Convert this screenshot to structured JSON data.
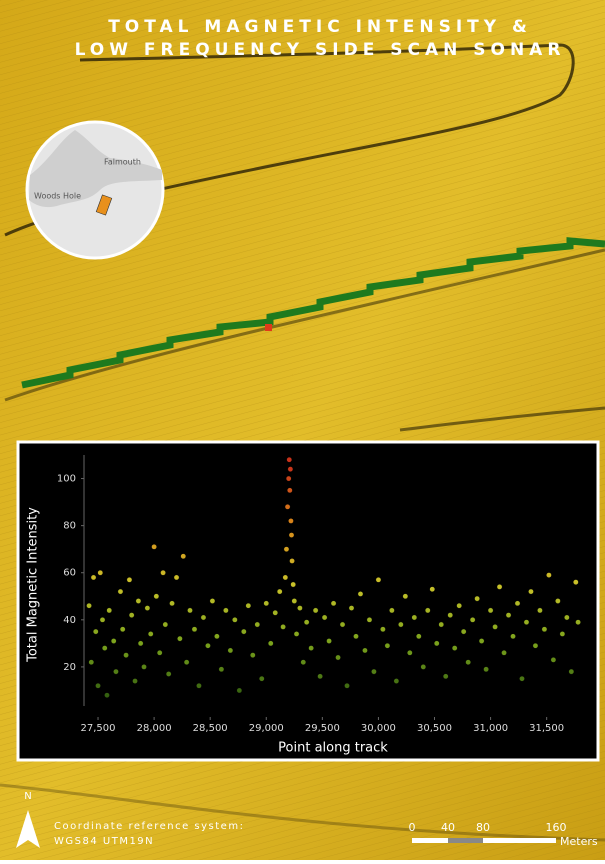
{
  "title": [
    "TOTAL MAGNETIC INTENSITY &",
    "LOW FREQUENCY SIDE SCAN SONAR"
  ],
  "inset_map": {
    "labels": [
      "Falmouth",
      "Woods Hole"
    ]
  },
  "chart_data": {
    "type": "scatter",
    "x_label": "Point along track",
    "y_label": "Total Magnetic Intensity",
    "xlim": [
      27375,
      31815
    ],
    "ylim": [
      0,
      110
    ],
    "xticks": [
      {
        "value": 27500,
        "label": "27,500"
      },
      {
        "value": 28000,
        "label": "28,000"
      },
      {
        "value": 28500,
        "label": "28,500"
      },
      {
        "value": 29000,
        "label": "29,000"
      },
      {
        "value": 29500,
        "label": "29,500"
      },
      {
        "value": 30000,
        "label": "30,000"
      },
      {
        "value": 30500,
        "label": "30,500"
      },
      {
        "value": 31000,
        "label": "31,000"
      },
      {
        "value": 31500,
        "label": "31,500"
      }
    ],
    "yticks": [
      20,
      40,
      60,
      80,
      100
    ],
    "color_stops": [
      {
        "value": 0,
        "color": "#1c4a0c"
      },
      {
        "value": 30,
        "color": "#7aa21c"
      },
      {
        "value": 55,
        "color": "#c9c22a"
      },
      {
        "value": 80,
        "color": "#d98a1a"
      },
      {
        "value": 105,
        "color": "#c8321a"
      }
    ],
    "series": [
      {
        "name": "Total Magnetic Intensity",
        "x": [
          27420,
          27440,
          27460,
          27480,
          27500,
          27520,
          27540,
          27560,
          27580,
          27600,
          27640,
          27660,
          27700,
          27720,
          27750,
          27780,
          27800,
          27830,
          27860,
          27880,
          27910,
          27940,
          27970,
          28000,
          28020,
          28050,
          28080,
          28100,
          28130,
          28160,
          28200,
          28230,
          28260,
          28290,
          28320,
          28360,
          28400,
          28440,
          28480,
          28520,
          28560,
          28600,
          28640,
          28680,
          28720,
          28760,
          28800,
          28840,
          28880,
          28920,
          28960,
          29000,
          29040,
          29080,
          29120,
          29150,
          29170,
          29180,
          29190,
          29200,
          29205,
          29210,
          29215,
          29220,
          29225,
          29230,
          29240,
          29250,
          29270,
          29300,
          29330,
          29360,
          29400,
          29440,
          29480,
          29520,
          29560,
          29600,
          29640,
          29680,
          29720,
          29760,
          29800,
          29840,
          29880,
          29920,
          29960,
          30000,
          30040,
          30080,
          30120,
          30160,
          30200,
          30240,
          30280,
          30320,
          30360,
          30400,
          30440,
          30480,
          30520,
          30560,
          30600,
          30640,
          30680,
          30720,
          30760,
          30800,
          30840,
          30880,
          30920,
          30960,
          31000,
          31040,
          31080,
          31120,
          31160,
          31200,
          31240,
          31280,
          31320,
          31360,
          31400,
          31440,
          31480,
          31520,
          31560,
          31600,
          31640,
          31680,
          31720,
          31760,
          31780
        ],
        "y": [
          46,
          22,
          58,
          35,
          12,
          60,
          40,
          28,
          8,
          44,
          31,
          18,
          52,
          36,
          25,
          57,
          42,
          14,
          48,
          30,
          20,
          45,
          34,
          71,
          50,
          26,
          60,
          38,
          17,
          47,
          58,
          32,
          67,
          22,
          44,
          36,
          12,
          41,
          29,
          48,
          33,
          19,
          44,
          27,
          40,
          10,
          35,
          46,
          25,
          38,
          15,
          47,
          30,
          43,
          52,
          37,
          58,
          70,
          88,
          100,
          108,
          95,
          104,
          82,
          76,
          65,
          55,
          48,
          34,
          45,
          22,
          39,
          28,
          44,
          16,
          41,
          31,
          47,
          24,
          38,
          12,
          45,
          33,
          51,
          27,
          40,
          18,
          57,
          36,
          29,
          44,
          14,
          38,
          50,
          26,
          41,
          33,
          20,
          44,
          53,
          30,
          38,
          16,
          42,
          28,
          46,
          35,
          22,
          40,
          49,
          31,
          19,
          44,
          37,
          54,
          26,
          42,
          33,
          47,
          15,
          39,
          52,
          29,
          44,
          36,
          59,
          23,
          48,
          34,
          41,
          18,
          56,
          39
        ]
      }
    ]
  },
  "footer": {
    "crs_label": "Coordinate reference system:",
    "crs": "WGS84 UTM19N"
  },
  "scale_bar": {
    "labels": [
      "0",
      "40",
      "80",
      "160"
    ],
    "unit": "Meters"
  },
  "north_arrow": "N"
}
